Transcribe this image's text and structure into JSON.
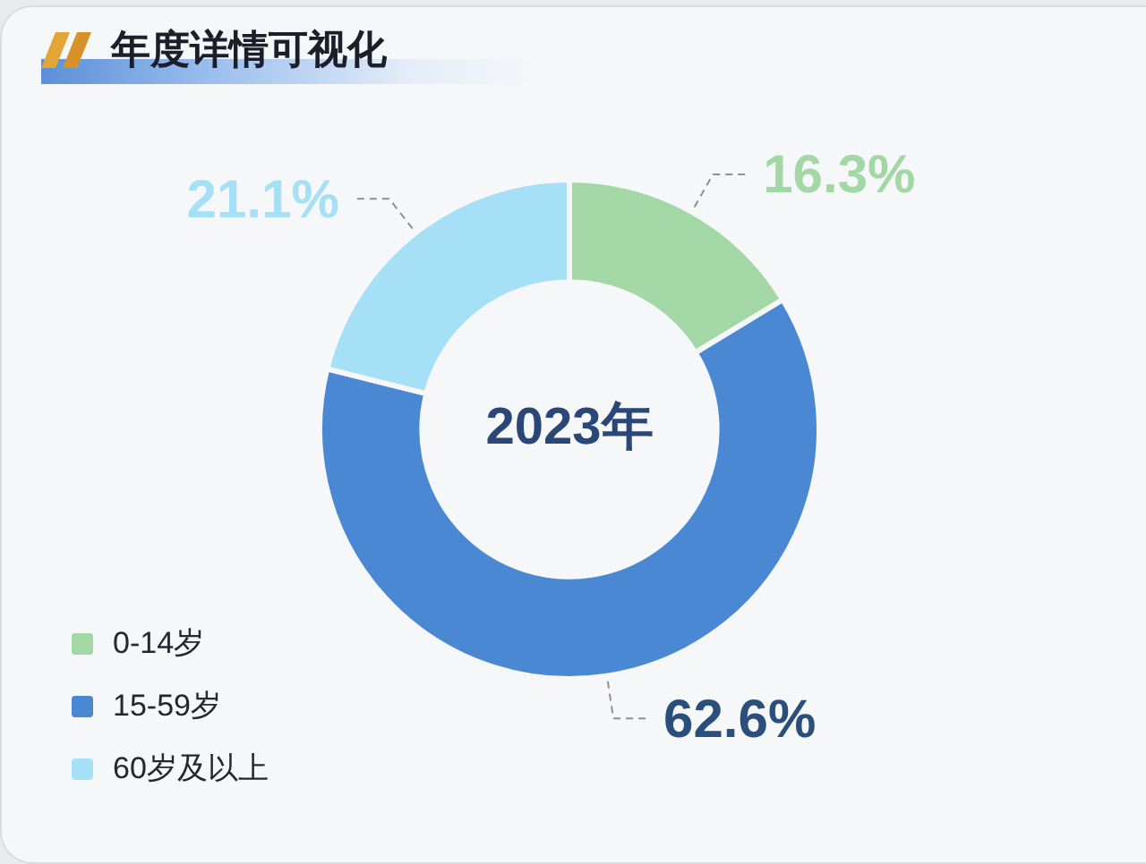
{
  "chart_data": {
    "type": "donut",
    "title": "年度详情可视化",
    "categories": [
      "0-14岁",
      "15-59岁",
      "60岁及以上"
    ],
    "values": [
      16.3,
      62.6,
      21.1
    ],
    "colors": [
      "#a3d8a6",
      "#4a88d4",
      "#a6e0f6"
    ],
    "value_labels": [
      "16.3%",
      "62.6%",
      "21.1%"
    ],
    "annotations": [
      "2023年"
    ],
    "legend": "bottom left"
  }
}
